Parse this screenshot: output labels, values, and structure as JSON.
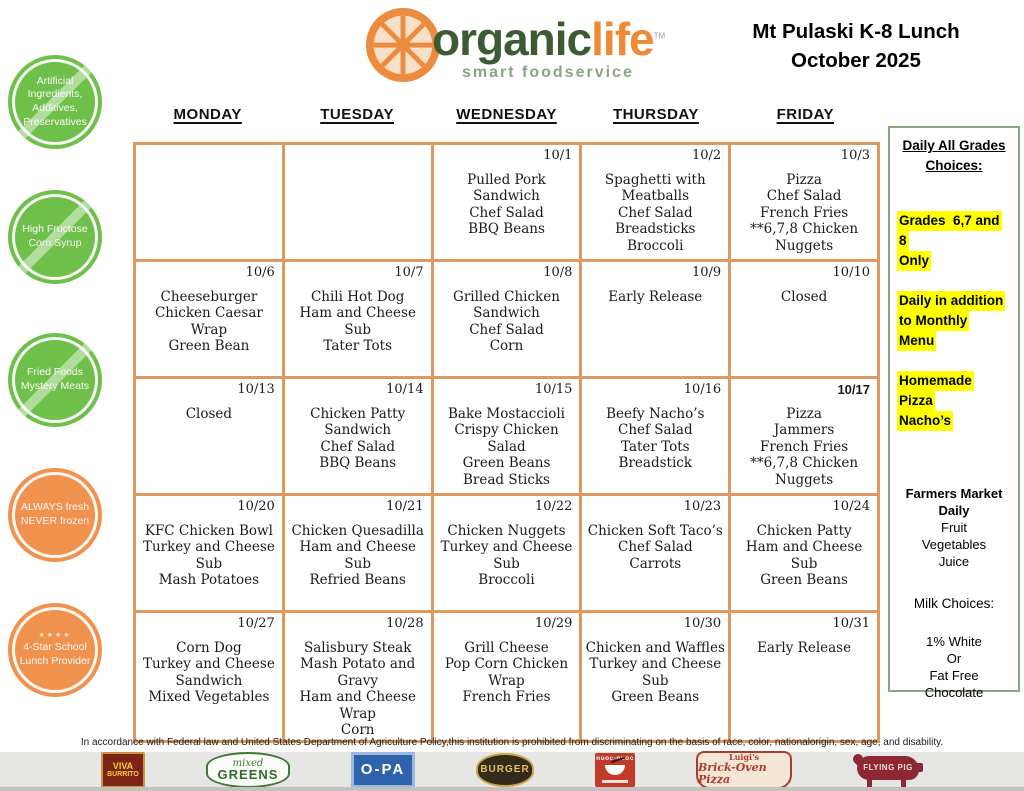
{
  "header": {
    "brand_part1": "organic",
    "brand_part2": "life",
    "brand_tm": "TM",
    "tagline": "smart foodservice",
    "title_line1": "Mt Pulaski K-8 Lunch",
    "title_line2": "October 2025"
  },
  "colors": {
    "calendar_border_orange": "#DC9A5F",
    "badge_green": "#6FBF4B",
    "badge_orange": "#F1914E",
    "panel_border_green": "#8AA87D",
    "highlight_yellow": "#FFFF00",
    "brand_green": "#3C5B33",
    "brand_orange": "#EE8A34"
  },
  "badges": [
    {
      "text": "Artificial Ingredients, Additives, Preservatives",
      "style": "green-slash"
    },
    {
      "text": "High Fructose Corn Syrup",
      "style": "green-slash"
    },
    {
      "text": "Fried Foods Mystery Meats",
      "style": "green-slash"
    },
    {
      "text": "ALWAYS fresh NEVER frozen",
      "style": "orange"
    },
    {
      "text": "4-Star School Lunch Provider",
      "style": "orange",
      "stars": "★★★★"
    }
  ],
  "calendar": {
    "weekdays": [
      "MONDAY",
      "TUESDAY",
      "WEDNESDAY",
      "THURSDAY",
      "FRIDAY"
    ],
    "weeks": [
      [
        {
          "date": "",
          "items": []
        },
        {
          "date": "",
          "items": []
        },
        {
          "date": "10/1",
          "items": [
            "Pulled Pork Sandwich",
            "Chef Salad",
            "BBQ Beans"
          ]
        },
        {
          "date": "10/2",
          "items": [
            "Spaghetti with Meatballs",
            "Chef Salad",
            "Breadsticks",
            "Broccoli"
          ]
        },
        {
          "date": "10/3",
          "items": [
            "Pizza",
            "Chef Salad",
            "French Fries",
            "**6,7,8 Chicken Nuggets"
          ]
        }
      ],
      [
        {
          "date": "10/6",
          "items": [
            "Cheeseburger",
            "Chicken Caesar Wrap",
            "Green Bean"
          ]
        },
        {
          "date": "10/7",
          "items": [
            "Chili Hot Dog",
            "Ham and Cheese Sub",
            "Tater Tots"
          ]
        },
        {
          "date": "10/8",
          "items": [
            "Grilled Chicken Sandwich",
            "Chef Salad",
            "Corn"
          ]
        },
        {
          "date": "10/9",
          "items": [
            "Early Release"
          ]
        },
        {
          "date": "10/10",
          "items": [
            "Closed"
          ]
        }
      ],
      [
        {
          "date": "10/13",
          "items": [
            "Closed"
          ]
        },
        {
          "date": "10/14",
          "items": [
            "Chicken Patty Sandwich",
            "Chef Salad",
            "BBQ Beans"
          ]
        },
        {
          "date": "10/15",
          "items": [
            "Bake Mostaccioli",
            "Crispy Chicken Salad",
            "Green Beans",
            "Bread Sticks"
          ]
        },
        {
          "date": "10/16",
          "items": [
            "Beefy Nacho’s",
            "Chef Salad",
            "Tater Tots",
            "Breadstick"
          ]
        },
        {
          "date": "10/17",
          "bold": true,
          "items": [
            "Pizza",
            "Jammers",
            "French Fries",
            "**6,7,8 Chicken Nuggets"
          ]
        }
      ],
      [
        {
          "date": "10/20",
          "items": [
            "KFC Chicken Bowl",
            "Turkey and Cheese Sub",
            "Mash Potatoes"
          ]
        },
        {
          "date": "10/21",
          "items": [
            "Chicken Quesadilla",
            "Ham and Cheese Sub",
            "Refried Beans"
          ]
        },
        {
          "date": "10/22",
          "items": [
            "Chicken Nuggets",
            "Turkey and Cheese Sub",
            "Broccoli"
          ]
        },
        {
          "date": "10/23",
          "items": [
            "Chicken Soft Taco’s",
            "Chef Salad",
            "Carrots"
          ]
        },
        {
          "date": "10/24",
          "items": [
            "Chicken Patty",
            "Ham and Cheese Sub",
            "Green Beans"
          ]
        }
      ],
      [
        {
          "date": "10/27",
          "items": [
            "Corn Dog",
            "Turkey and Cheese Sandwich",
            "Mixed Vegetables"
          ]
        },
        {
          "date": "10/28",
          "items": [
            "Salisbury Steak",
            "Mash Potato and Gravy",
            "Ham and Cheese Wrap",
            "Corn"
          ]
        },
        {
          "date": "10/29",
          "items": [
            "Grill Cheese",
            "Pop Corn Chicken Wrap",
            "French Fries"
          ]
        },
        {
          "date": "10/30",
          "items": [
            "Chicken and Waffles",
            "Turkey and Cheese Sub",
            "Green Beans"
          ]
        },
        {
          "date": "10/31",
          "items": [
            "Early Release"
          ]
        }
      ]
    ]
  },
  "side_panel": {
    "title": "Daily All Grades Choices:",
    "groups": [
      {
        "lines": [
          "Grades  6,7 and",
          "8",
          "Only"
        ]
      },
      {
        "lines": [
          "Daily in addition",
          "to Monthly",
          "Menu"
        ]
      },
      {
        "lines": [
          "Homemade",
          "Pizza",
          "Nacho’s"
        ]
      }
    ],
    "farmers": {
      "line1": "Farmers Market",
      "line2": "Daily",
      "line3": "Fruit",
      "line4": "Vegetables",
      "line5": "Juice"
    },
    "milk_title": "Milk Choices:",
    "milk": {
      "line1": "1% White",
      "line2": "Or",
      "line3": "Fat Free",
      "line4": "Chocolate"
    }
  },
  "footer": {
    "disclaimer": "In accordance with Federal law and United States Department of Agriculture Policy,this institution is prohibited from discriminating on the basis of race, color, nationalorigin, sex, age, and disability.",
    "logos": [
      {
        "name": "viva-burrito",
        "line1": "VIVA",
        "line2": "BURRITO"
      },
      {
        "name": "mixed-greens",
        "line1": "mixed",
        "line2": "GREENS"
      },
      {
        "name": "o-pa",
        "line1": "O-PA"
      },
      {
        "name": "burger",
        "line1": "BURGER"
      },
      {
        "name": "nuoc-nuoc",
        "line1": "nuoc-nuoc"
      },
      {
        "name": "luigis-brick-oven-pizza",
        "line1": "Luigi's",
        "line2": "Brick-Oven Pizza"
      },
      {
        "name": "flying-pig",
        "line1": "FLYING PIG"
      }
    ]
  }
}
